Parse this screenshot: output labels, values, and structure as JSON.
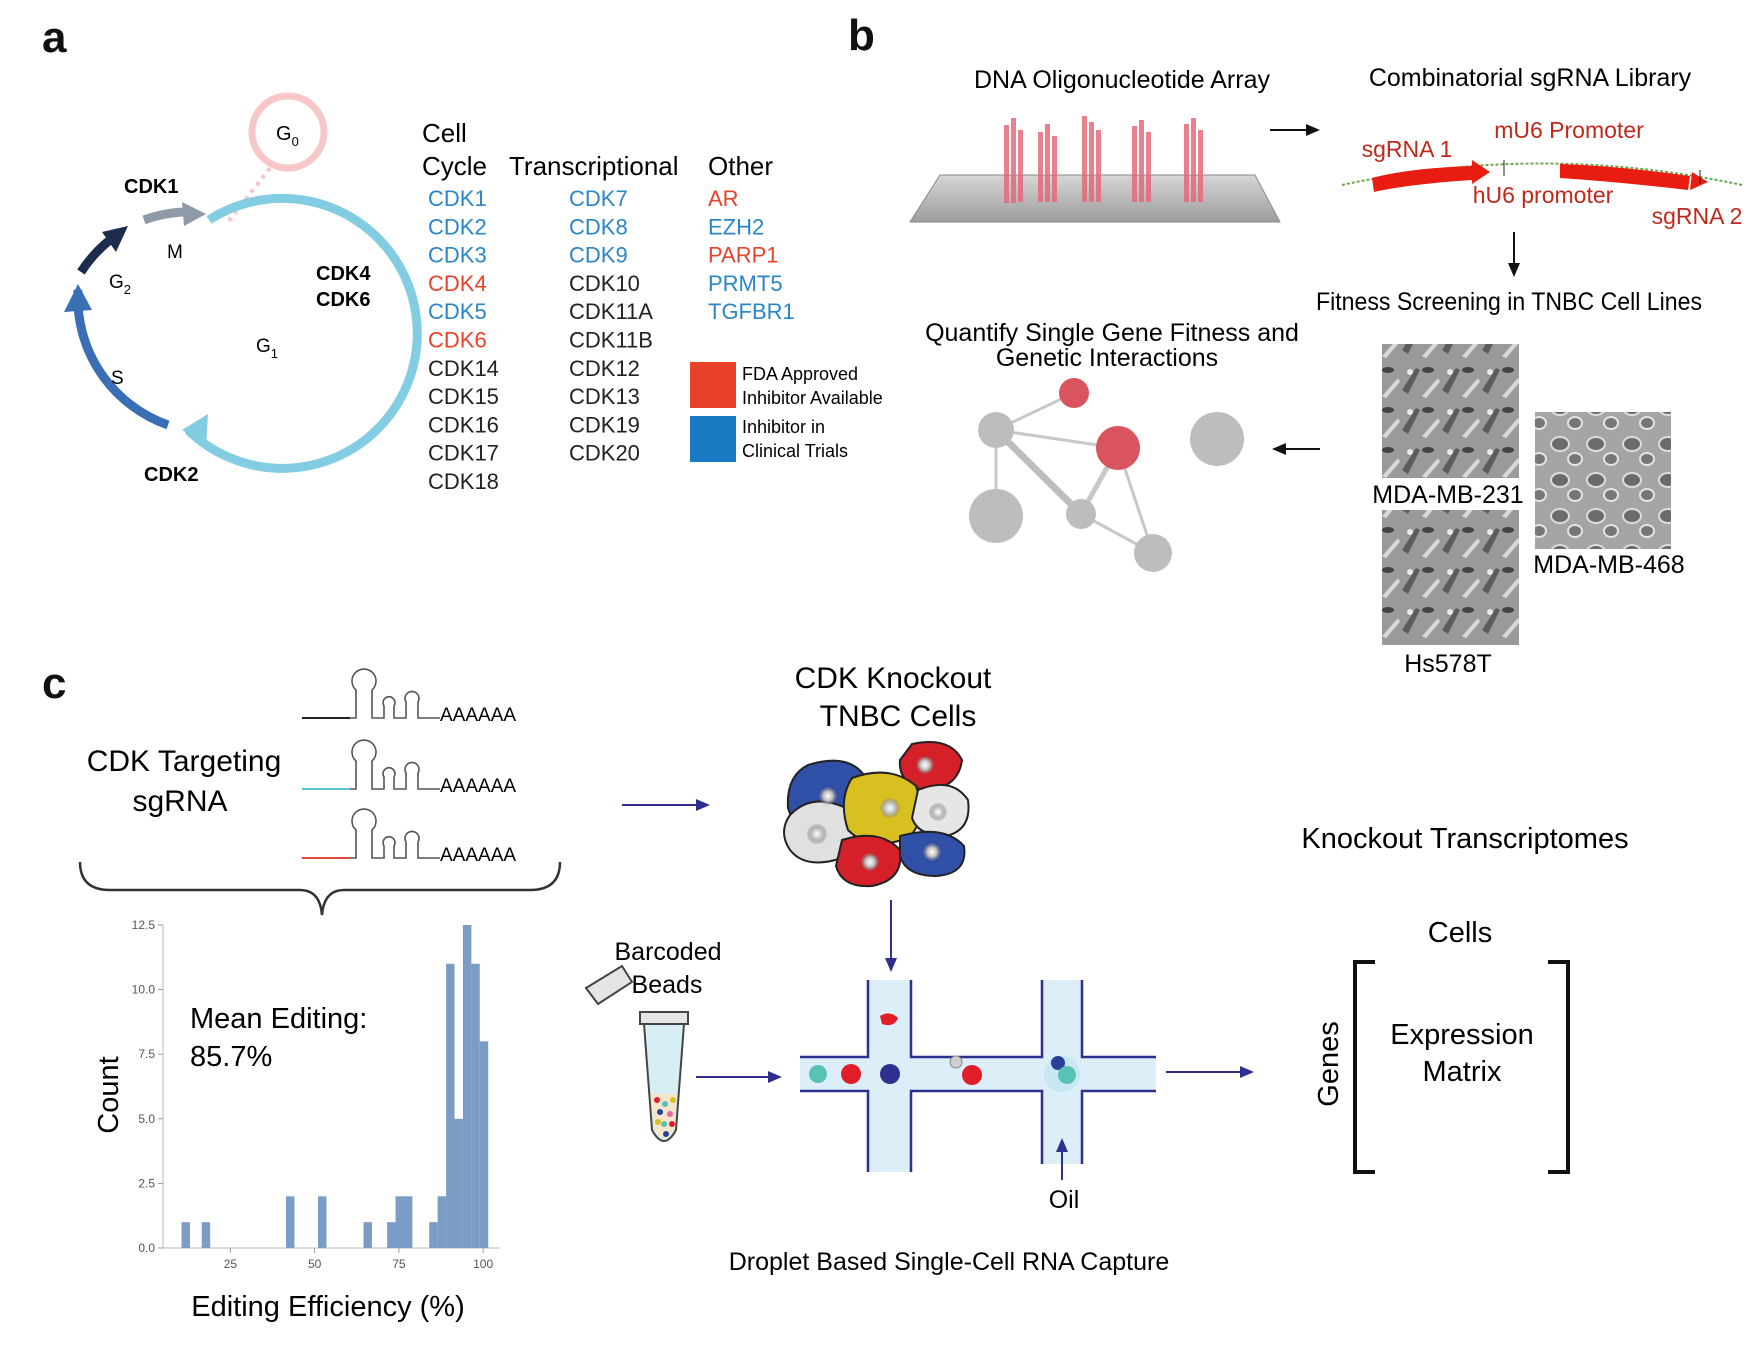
{
  "panel_a": {
    "letter": "a",
    "cycle_labels": {
      "g0": "G",
      "g0_sub": "0",
      "m": "M",
      "g1": "G",
      "g1_sub": "1",
      "g2": "G",
      "g2_sub": "2",
      "s": "S"
    },
    "cdk_labels": {
      "cdk1": "CDK1",
      "cdk2": "CDK2",
      "cdk4": "CDK4",
      "cdk6": "CDK6"
    },
    "columns": [
      {
        "header_lines": [
          "Cell",
          "Cycle"
        ],
        "items": [
          {
            "text": "CDK1",
            "status": "clinical"
          },
          {
            "text": "CDK2",
            "status": "clinical"
          },
          {
            "text": "CDK3",
            "status": "clinical"
          },
          {
            "text": "CDK4",
            "status": "fda"
          },
          {
            "text": "CDK5",
            "status": "clinical"
          },
          {
            "text": "CDK6",
            "status": "fda"
          },
          {
            "text": "CDK14",
            "status": "none"
          },
          {
            "text": "CDK15",
            "status": "none"
          },
          {
            "text": "CDK16",
            "status": "none"
          },
          {
            "text": "CDK17",
            "status": "none"
          },
          {
            "text": "CDK18",
            "status": "none"
          }
        ]
      },
      {
        "header_lines": [
          "Transcriptional"
        ],
        "items": [
          {
            "text": "CDK7",
            "status": "clinical"
          },
          {
            "text": "CDK8",
            "status": "clinical"
          },
          {
            "text": "CDK9",
            "status": "clinical"
          },
          {
            "text": "CDK10",
            "status": "none"
          },
          {
            "text": "CDK11A",
            "status": "none"
          },
          {
            "text": "CDK11B",
            "status": "none"
          },
          {
            "text": "CDK12",
            "status": "none"
          },
          {
            "text": "CDK13",
            "status": "none"
          },
          {
            "text": "CDK19",
            "status": "none"
          },
          {
            "text": "CDK20",
            "status": "none"
          }
        ]
      },
      {
        "header_lines": [
          "Other"
        ],
        "items": [
          {
            "text": "AR",
            "status": "fda"
          },
          {
            "text": "EZH2",
            "status": "clinical"
          },
          {
            "text": "PARP1",
            "status": "fda"
          },
          {
            "text": "PRMT5",
            "status": "clinical"
          },
          {
            "text": "TGFBR1",
            "status": "clinical"
          }
        ]
      }
    ],
    "legend": [
      {
        "lines": [
          "FDA Approved",
          "Inhibitor Available"
        ],
        "color": "#e8432a"
      },
      {
        "lines": [
          "Inhibitor in",
          "Clinical Trials"
        ],
        "color": "#1a7ac4"
      }
    ],
    "colors": {
      "fda": "#e8432a",
      "clinical": "#2a86c8",
      "none": "#222222"
    }
  },
  "panel_b": {
    "letter": "b",
    "array_title": "DNA Oligonucleotide Array",
    "library_title": "Combinatorial sgRNA Library",
    "construct_labels": {
      "mu6": "mU6 Promoter",
      "sgrna1": "sgRNA 1",
      "hu6": "hU6 promoter",
      "sgrna2": "sgRNA 2"
    },
    "screening_title": "Fitness Screening in TNBC Cell Lines",
    "quantify_title_lines": [
      "Quantify Single Gene Fitness and",
      "Genetic Interactions"
    ],
    "cell_lines": [
      "MDA-MB-231",
      "MDA-MB-468",
      "Hs578T"
    ]
  },
  "panel_c": {
    "letter": "c",
    "sgrna_title_lines": [
      "CDK Targeting",
      "sgRNA"
    ],
    "polya": [
      "AAAAAA",
      "AAAAAA",
      "AAAAAA"
    ],
    "knockout_title_lines": [
      "CDK Knockout",
      "TNBC Cells"
    ],
    "beads_label_lines": [
      "Barcoded",
      "Beads"
    ],
    "oil_label": "Oil",
    "capture_label": "Droplet Based Single-Cell RNA Capture",
    "transcriptomes_title": "Knockout Transcriptomes",
    "matrix": {
      "cols_label": "Cells",
      "rows_label": "Genes",
      "content_lines": [
        "Expression",
        "Matrix"
      ]
    },
    "histogram": {
      "annotation_lines": [
        "Mean Editing:",
        "85.7%"
      ],
      "xlabel": "Editing Efficiency (%)",
      "ylabel": "Count"
    },
    "colors": {
      "red": "#e11d2a",
      "blue": "#2a3f9a",
      "yellow": "#d9c021",
      "teal": "#59c2b4",
      "navy": "#2e2f8f"
    }
  },
  "chart_data": {
    "type": "bar",
    "title": "",
    "xlabel": "Editing Efficiency (%)",
    "ylabel": "Count",
    "xlim": [
      5,
      105
    ],
    "ylim": [
      0,
      12.5
    ],
    "xticks": [
      "25",
      "50",
      "75",
      "100"
    ],
    "yticks": [
      "0.0",
      "2.5",
      "5.0",
      "7.5",
      "10.0",
      "12.5"
    ],
    "grid": false,
    "color": "#7b9cc4",
    "bin_width": 2.5,
    "bins": [
      {
        "x0": 10.5,
        "count": 1
      },
      {
        "x0": 16.5,
        "count": 1
      },
      {
        "x0": 41.5,
        "count": 2
      },
      {
        "x0": 51,
        "count": 2
      },
      {
        "x0": 64.5,
        "count": 1
      },
      {
        "x0": 71.5,
        "count": 1
      },
      {
        "x0": 74,
        "count": 2
      },
      {
        "x0": 76.5,
        "count": 2
      },
      {
        "x0": 84,
        "count": 1
      },
      {
        "x0": 86.5,
        "count": 2
      },
      {
        "x0": 89,
        "count": 11
      },
      {
        "x0": 91.5,
        "count": 5
      },
      {
        "x0": 94,
        "count": 12.5
      },
      {
        "x0": 96.5,
        "count": 11
      },
      {
        "x0": 99,
        "count": 8
      }
    ]
  }
}
